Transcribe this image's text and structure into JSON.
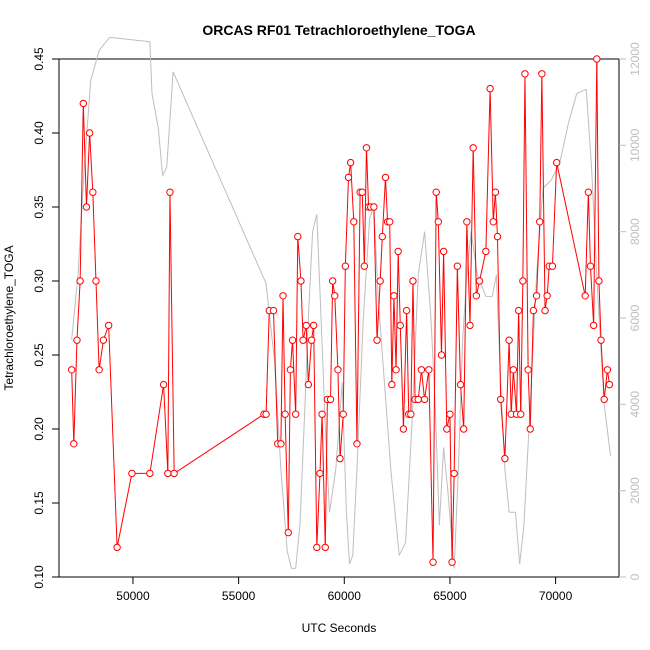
{
  "chart_data": {
    "type": "line",
    "title": "ORCAS RF01 Tetrachloroethylene_TOGA",
    "xlabel": "UTC Seconds",
    "ylabel": "Tetrachloroethylene_TOGA",
    "xlim": [
      46500,
      73000
    ],
    "ylim": [
      0.1,
      0.45
    ],
    "y2lim": [
      0,
      12000
    ],
    "x_ticks": [
      50000,
      55000,
      60000,
      65000,
      70000
    ],
    "x_tick_labels": [
      "50000",
      "55000",
      "60000",
      "65000",
      "70000"
    ],
    "y_ticks": [
      0.1,
      0.15,
      0.2,
      0.25,
      0.3,
      0.35,
      0.4,
      0.45
    ],
    "y_tick_labels": [
      "0.10",
      "0.15",
      "0.20",
      "0.25",
      "0.30",
      "0.35",
      "0.40",
      "0.45"
    ],
    "y2_ticks": [
      0,
      2000,
      4000,
      6000,
      8000,
      10000,
      12000
    ],
    "y2_tick_labels": [
      "0",
      "2000",
      "4000",
      "6000",
      "8000",
      "10000",
      "12000"
    ],
    "grid": false,
    "colors": {
      "primary": "#ff0000",
      "secondary": "#bebebe",
      "axis": "#000000"
    },
    "series": [
      {
        "role": "primary",
        "color": "#ff0000",
        "marker": "open-circle",
        "x": [
          47100,
          47200,
          47350,
          47500,
          47650,
          47800,
          47950,
          48100,
          48250,
          48400,
          48600,
          48850,
          49250,
          49950,
          50800,
          51450,
          51650,
          51750,
          51950,
          56200,
          56300,
          56450,
          56650,
          56850,
          57000,
          57100,
          57200,
          57350,
          57450,
          57550,
          57700,
          57800,
          57950,
          58050,
          58200,
          58300,
          58450,
          58550,
          58700,
          58850,
          58950,
          59100,
          59200,
          59350,
          59450,
          59550,
          59700,
          59800,
          59950,
          60050,
          60200,
          60300,
          60450,
          60600,
          60750,
          60850,
          60950,
          61050,
          61150,
          61250,
          61400,
          61550,
          61700,
          61800,
          61950,
          62050,
          62150,
          62250,
          62350,
          62450,
          62550,
          62650,
          62800,
          62950,
          63050,
          63150,
          63250,
          63350,
          63500,
          63650,
          63800,
          64000,
          64200,
          64350,
          64450,
          64600,
          64700,
          64850,
          65000,
          65100,
          65200,
          65350,
          65500,
          65650,
          65800,
          65950,
          66100,
          66250,
          66400,
          66700,
          66900,
          67050,
          67150,
          67250,
          67400,
          67600,
          67800,
          67900,
          68000,
          68150,
          68250,
          68350,
          68450,
          68550,
          68700,
          68800,
          68950,
          69100,
          69250,
          69350,
          69500,
          69600,
          69700,
          69850,
          70050,
          71400,
          71550,
          71650,
          71800,
          71950,
          72050,
          72150,
          72300,
          72450,
          72550
        ],
        "y": [
          0.24,
          0.19,
          0.26,
          0.3,
          0.42,
          0.35,
          0.4,
          0.36,
          0.3,
          0.24,
          0.26,
          0.27,
          0.12,
          0.17,
          0.17,
          0.23,
          0.17,
          0.36,
          0.17,
          0.21,
          0.21,
          0.28,
          0.28,
          0.19,
          0.19,
          0.29,
          0.21,
          0.13,
          0.24,
          0.26,
          0.21,
          0.33,
          0.3,
          0.26,
          0.27,
          0.23,
          0.26,
          0.27,
          0.12,
          0.17,
          0.21,
          0.12,
          0.22,
          0.22,
          0.3,
          0.29,
          0.24,
          0.18,
          0.21,
          0.31,
          0.37,
          0.38,
          0.34,
          0.19,
          0.36,
          0.36,
          0.31,
          0.39,
          0.35,
          0.35,
          0.35,
          0.26,
          0.3,
          0.33,
          0.37,
          0.34,
          0.34,
          0.23,
          0.29,
          0.24,
          0.32,
          0.27,
          0.2,
          0.28,
          0.21,
          0.21,
          0.3,
          0.22,
          0.22,
          0.24,
          0.22,
          0.24,
          0.11,
          0.36,
          0.34,
          0.25,
          0.32,
          0.2,
          0.21,
          0.11,
          0.17,
          0.31,
          0.23,
          0.2,
          0.34,
          0.27,
          0.39,
          0.29,
          0.3,
          0.32,
          0.43,
          0.34,
          0.36,
          0.33,
          0.22,
          0.18,
          0.26,
          0.21,
          0.24,
          0.21,
          0.28,
          0.21,
          0.3,
          0.44,
          0.24,
          0.2,
          0.28,
          0.29,
          0.34,
          0.44,
          0.28,
          0.29,
          0.31,
          0.31,
          0.38,
          0.29,
          0.36,
          0.31,
          0.27,
          0.45,
          0.3,
          0.26,
          0.22,
          0.24,
          0.23
        ]
      },
      {
        "role": "secondary",
        "color": "#bebebe",
        "marker": "none",
        "x": [
          47100,
          47400,
          47700,
          48000,
          48400,
          48900,
          50800,
          50900,
          51200,
          51400,
          51600,
          51900,
          56300,
          56700,
          57000,
          57300,
          57500,
          57700,
          57900,
          58100,
          58300,
          58500,
          58700,
          58900,
          59100,
          59300,
          59600,
          59900,
          60100,
          60250,
          60400,
          60600,
          60900,
          61200,
          61400,
          61600,
          61900,
          62200,
          62600,
          62900,
          63200,
          63500,
          63800,
          64100,
          64300,
          64500,
          64700,
          64900,
          65200,
          65400,
          65600,
          65800,
          66000,
          66300,
          66700,
          67000,
          67200,
          67400,
          67600,
          67800,
          68100,
          68300,
          68500,
          68800,
          69100,
          69400,
          69800,
          70200,
          70600,
          71000,
          71450,
          71700,
          72000,
          72300,
          72600
        ],
        "y": [
          5500,
          7000,
          9500,
          11500,
          12200,
          12500,
          12400,
          11200,
          10400,
          9300,
          9500,
          11700,
          6800,
          5000,
          2500,
          600,
          200,
          200,
          1200,
          3500,
          6000,
          8000,
          8400,
          6000,
          3500,
          1500,
          2500,
          4500,
          1500,
          300,
          500,
          2500,
          6000,
          8300,
          8600,
          6500,
          4500,
          2500,
          500,
          800,
          3500,
          7000,
          8000,
          6000,
          4000,
          1200,
          3000,
          2000,
          200,
          2500,
          5500,
          7000,
          8000,
          7000,
          6500,
          6500,
          7000,
          4500,
          2500,
          1500,
          1500,
          300,
          1200,
          4000,
          7000,
          9000,
          9200,
          9600,
          10500,
          11200,
          11300,
          9500,
          6500,
          4000,
          2800
        ]
      }
    ]
  }
}
